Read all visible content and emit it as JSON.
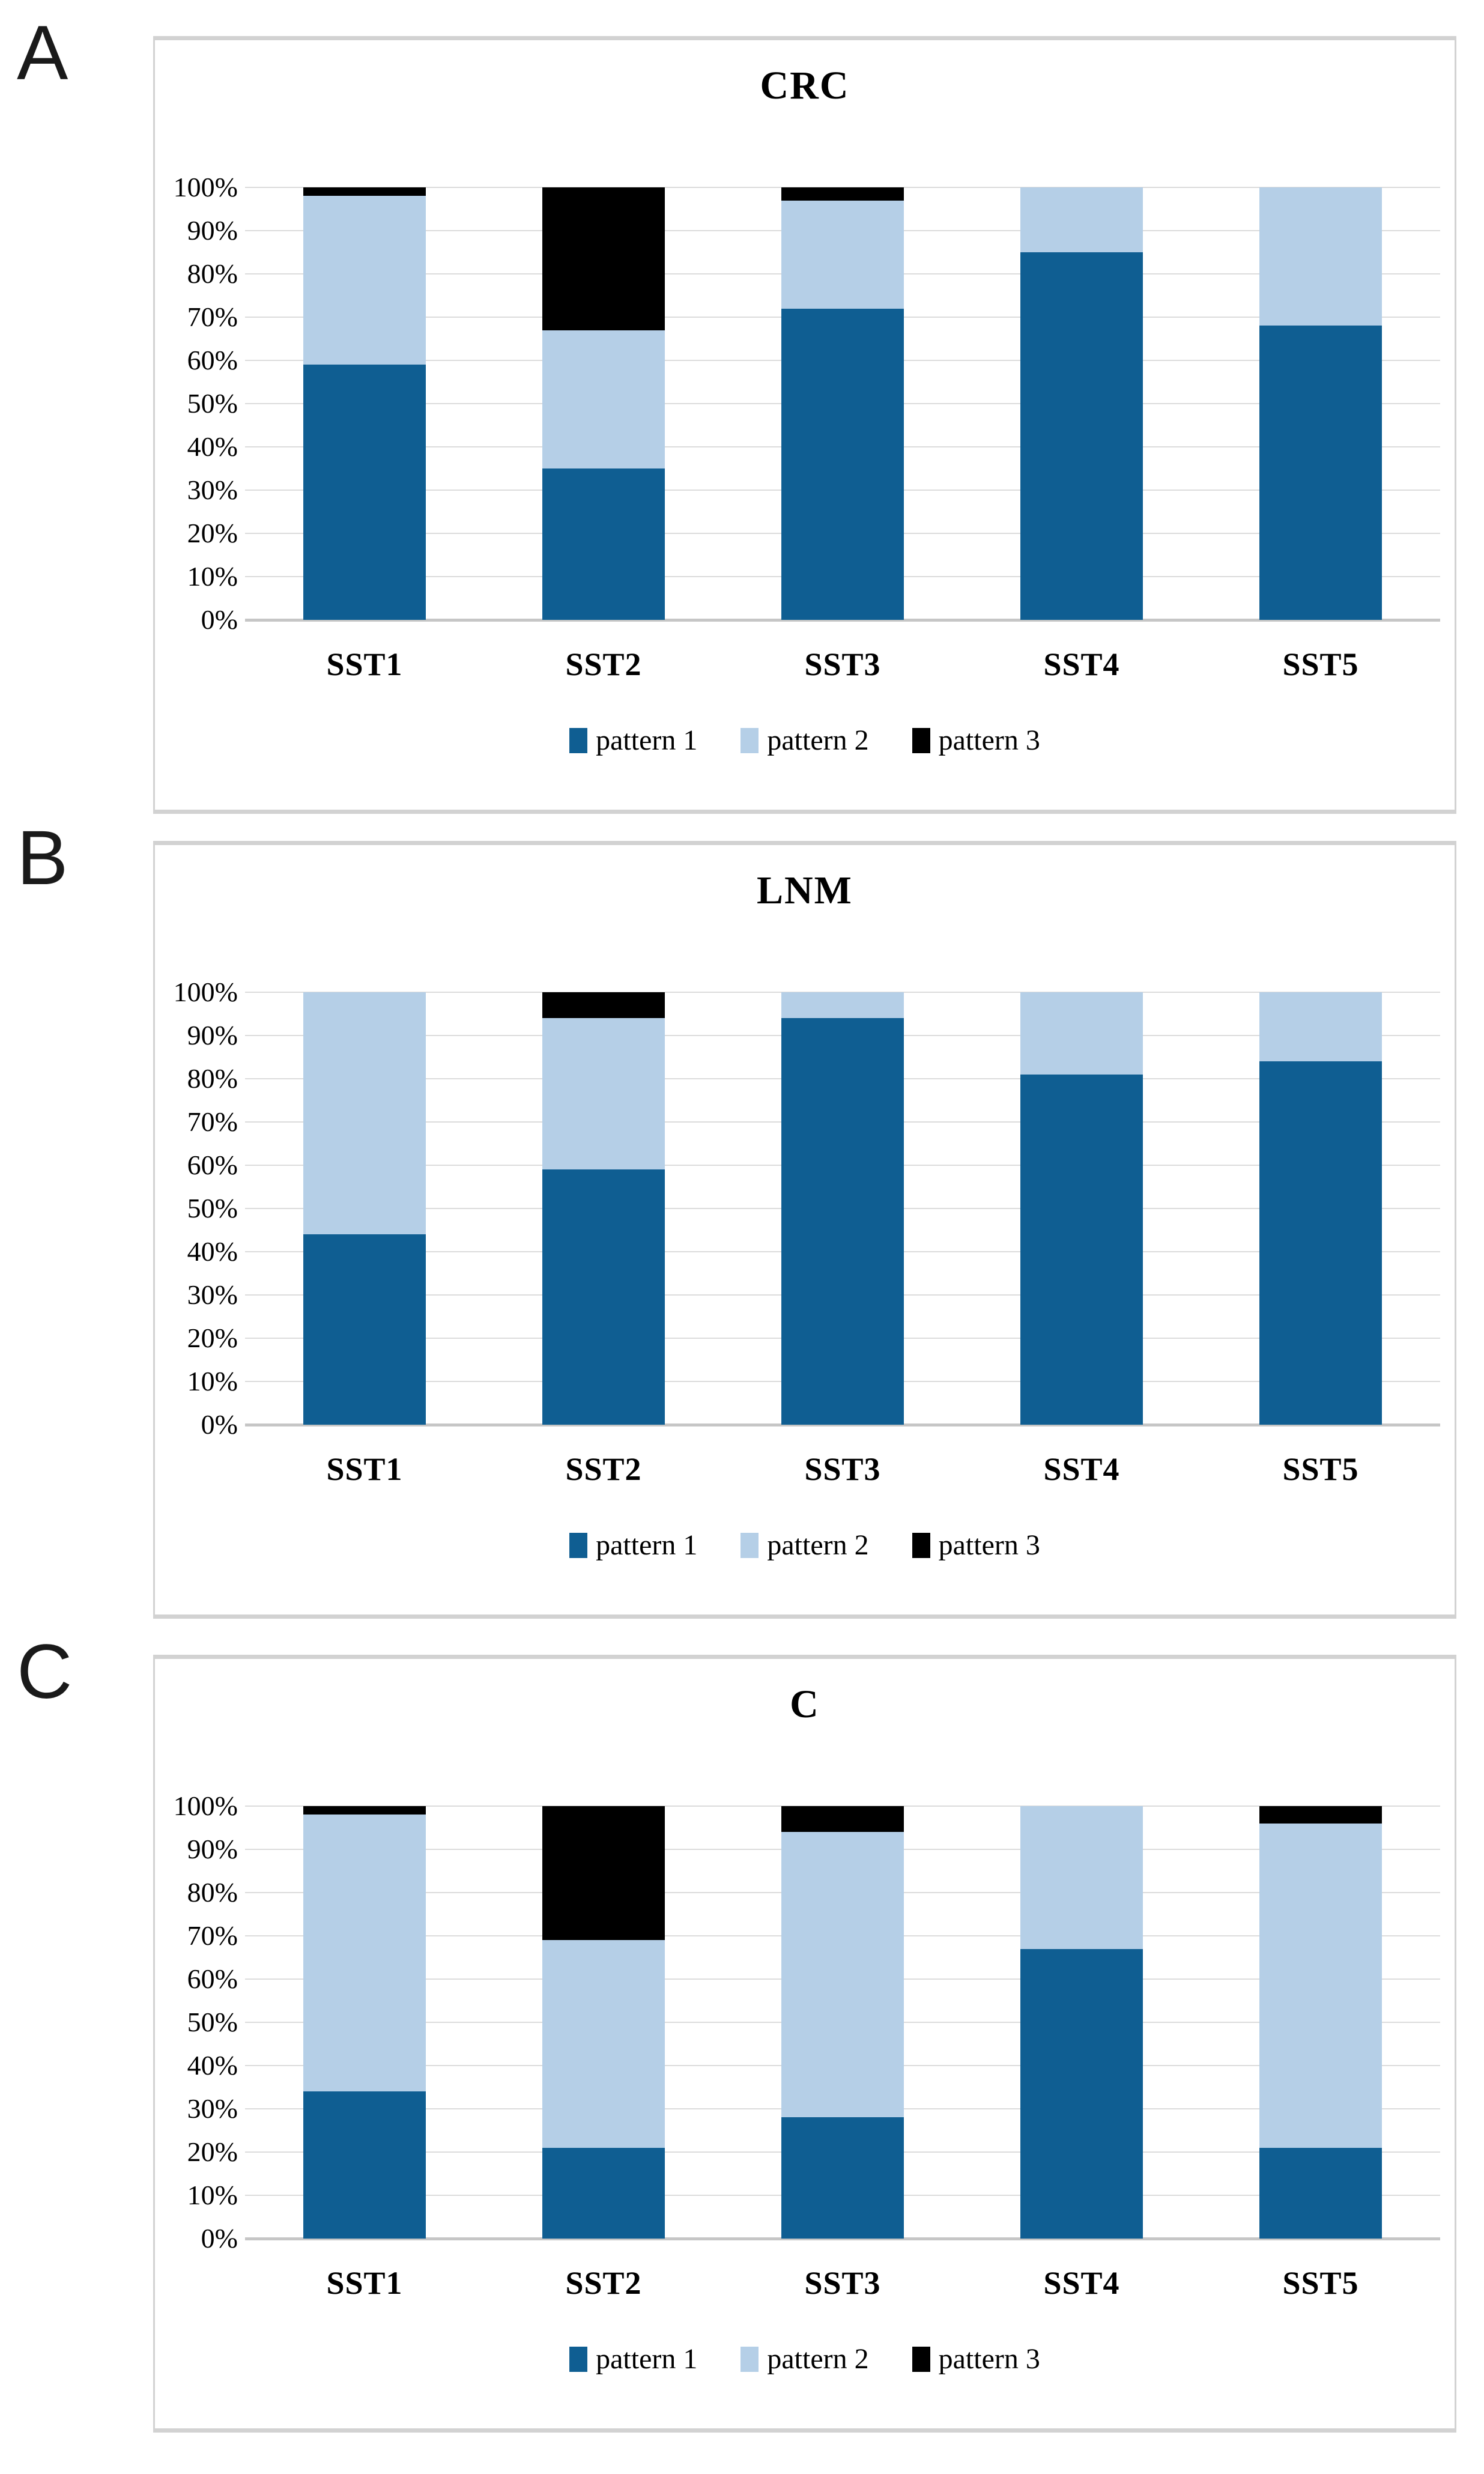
{
  "figure": {
    "y_ticks": [
      "100%",
      "90%",
      "80%",
      "70%",
      "60%",
      "50%",
      "40%",
      "30%",
      "20%",
      "10%",
      "0%"
    ],
    "colors": {
      "pattern1": "#0F5E92",
      "pattern2": "#B5CFE7",
      "pattern3": "#000000",
      "gridline": "#DCDCDC",
      "axis_line": "#C6C6C6",
      "panel_border": "#D2D2D2",
      "text": "#000000"
    }
  },
  "chart_data": [
    {
      "type": "bar",
      "stacked": true,
      "units": "percent",
      "panel_label": "A",
      "title": "CRC",
      "categories": [
        "SST1",
        "SST2",
        "SST3",
        "SST4",
        "SST5"
      ],
      "series": [
        {
          "name": "pattern 1",
          "color": "#0F5E92",
          "values": [
            59,
            35,
            72,
            85,
            68
          ]
        },
        {
          "name": "pattern 2",
          "color": "#B5CFE7",
          "values": [
            39,
            32,
            25,
            15,
            32
          ]
        },
        {
          "name": "pattern 3",
          "color": "#000000",
          "values": [
            2,
            33,
            3,
            0,
            0
          ]
        }
      ],
      "ylabel": "",
      "xlabel": "",
      "ylim": [
        0,
        100
      ],
      "grid": true,
      "legend_position": "bottom"
    },
    {
      "type": "bar",
      "stacked": true,
      "units": "percent",
      "panel_label": "B",
      "title": "LNM",
      "categories": [
        "SST1",
        "SST2",
        "SST3",
        "SST4",
        "SST5"
      ],
      "series": [
        {
          "name": "pattern 1",
          "color": "#0F5E92",
          "values": [
            44,
            59,
            94,
            81,
            84
          ]
        },
        {
          "name": "pattern 2",
          "color": "#B5CFE7",
          "values": [
            56,
            35,
            6,
            19,
            16
          ]
        },
        {
          "name": "pattern 3",
          "color": "#000000",
          "values": [
            0,
            6,
            0,
            0,
            0
          ]
        }
      ],
      "ylabel": "",
      "xlabel": "",
      "ylim": [
        0,
        100
      ],
      "grid": true,
      "legend_position": "bottom"
    },
    {
      "type": "bar",
      "stacked": true,
      "units": "percent",
      "panel_label": "C",
      "title": "C",
      "categories": [
        "SST1",
        "SST2",
        "SST3",
        "SST4",
        "SST5"
      ],
      "series": [
        {
          "name": "pattern 1",
          "color": "#0F5E92",
          "values": [
            34,
            21,
            28,
            67,
            21
          ]
        },
        {
          "name": "pattern 2",
          "color": "#B5CFE7",
          "values": [
            64,
            48,
            66,
            33,
            75
          ]
        },
        {
          "name": "pattern 3",
          "color": "#000000",
          "values": [
            2,
            31,
            6,
            0,
            4
          ]
        }
      ],
      "ylabel": "",
      "xlabel": "",
      "ylim": [
        0,
        100
      ],
      "grid": true,
      "legend_position": "bottom"
    }
  ]
}
